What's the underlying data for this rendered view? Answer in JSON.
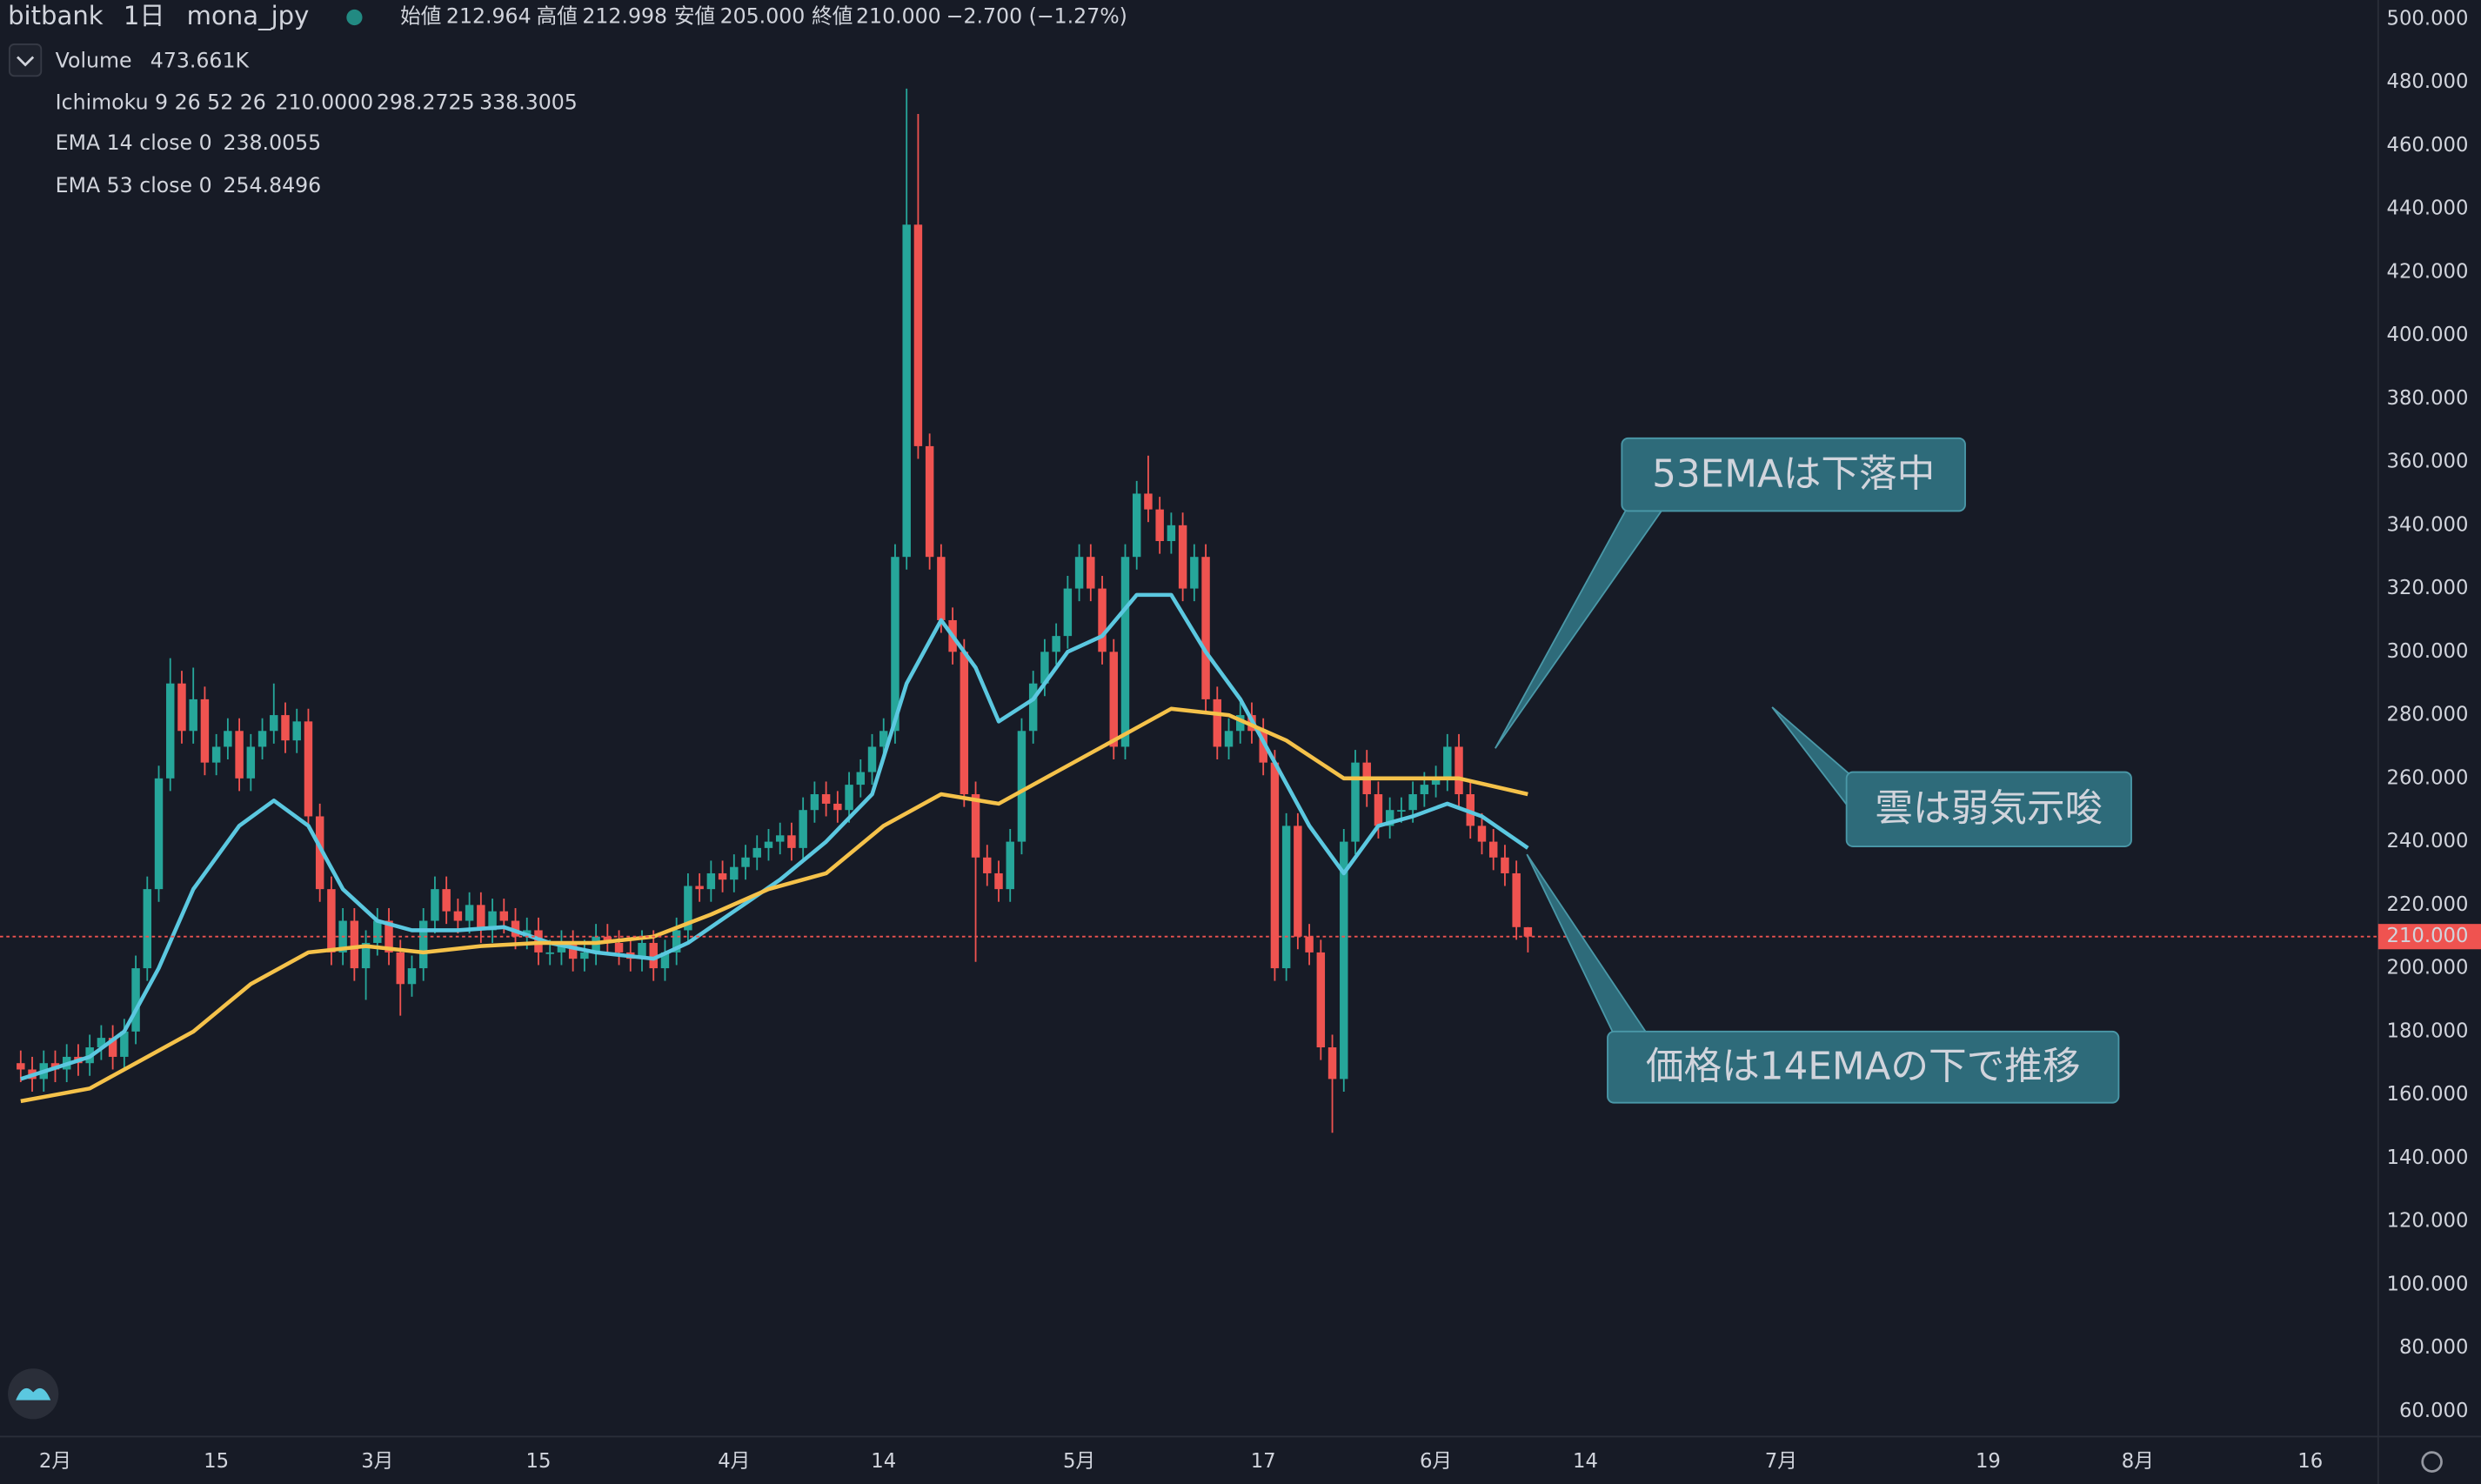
{
  "chart_data": {
    "type": "candlestick",
    "header": {
      "exchange": "bitbank",
      "interval": "1日",
      "symbol": "mona_jpy",
      "open_label": "始値",
      "open": "212.964",
      "high_label": "高値",
      "high": "212.998",
      "low_label": "安値",
      "low": "205.000",
      "close_label": "終値",
      "close": "210.000",
      "change": "−2.700 (−1.27%)"
    },
    "indicators": [
      {
        "name": "Volume",
        "values": [
          "473.661K"
        ],
        "colors": [
          "#ef5350"
        ]
      },
      {
        "name": "Ichimoku 9 26 52 26",
        "values": [
          "210.0000",
          "298.2725",
          "338.3005"
        ],
        "colors": [
          "#4caf50",
          "#4caf50",
          "#ef5350"
        ]
      }
    ],
    "colors": {
      "up": "#26a69a",
      "down": "#ef5350"
    },
    "open": [
      170,
      168,
      165,
      170,
      168,
      172,
      170,
      175,
      178,
      172,
      180,
      200,
      225,
      260,
      290,
      275,
      285,
      265,
      270,
      275,
      260,
      270,
      275,
      280,
      272,
      278,
      248,
      225,
      205,
      215,
      200,
      208,
      215,
      205,
      195,
      200,
      215,
      225,
      218,
      215,
      220,
      212,
      218,
      215,
      210,
      212,
      205,
      205,
      208,
      203,
      205,
      210,
      208,
      205,
      203,
      208,
      200,
      205,
      212,
      226,
      225,
      230,
      228,
      232,
      235,
      238,
      240,
      242,
      238,
      250,
      255,
      252,
      250,
      258,
      262,
      270,
      275,
      330,
      435,
      365,
      330,
      310,
      300,
      255,
      235,
      230,
      225,
      240,
      275,
      290,
      300,
      305,
      320,
      330,
      320,
      300,
      270,
      330,
      350,
      345,
      335,
      340,
      320,
      330,
      285,
      270,
      275,
      280,
      275,
      265,
      200,
      245,
      210,
      205,
      175,
      165,
      240,
      265,
      255,
      245,
      250,
      250,
      255,
      258,
      260,
      270,
      255,
      245,
      240,
      235,
      230,
      212.964
    ],
    "high": [
      174,
      172,
      174,
      174,
      176,
      176,
      179,
      182,
      182,
      184,
      204,
      229,
      264,
      298,
      294,
      295,
      289,
      274,
      279,
      279,
      274,
      279,
      290,
      284,
      282,
      282,
      252,
      229,
      219,
      219,
      212,
      219,
      219,
      209,
      204,
      219,
      229,
      229,
      222,
      224,
      224,
      222,
      222,
      219,
      216,
      216,
      209,
      212,
      212,
      209,
      214,
      214,
      212,
      209,
      212,
      212,
      209,
      216,
      230,
      230,
      234,
      234,
      236,
      239,
      242,
      244,
      246,
      246,
      254,
      259,
      259,
      256,
      262,
      266,
      274,
      279,
      334,
      478,
      470,
      369,
      334,
      314,
      304,
      259,
      239,
      234,
      244,
      279,
      294,
      304,
      309,
      324,
      334,
      334,
      324,
      304,
      334,
      354,
      362,
      349,
      344,
      344,
      334,
      334,
      289,
      279,
      284,
      284,
      279,
      269,
      249,
      249,
      214,
      209,
      179,
      244,
      269,
      269,
      259,
      254,
      254,
      259,
      262,
      264,
      274,
      274,
      259,
      249,
      244,
      239,
      234,
      212.998
    ],
    "low": [
      164,
      161,
      161,
      164,
      164,
      166,
      166,
      171,
      168,
      168,
      176,
      196,
      221,
      256,
      271,
      271,
      261,
      261,
      266,
      256,
      256,
      266,
      271,
      268,
      268,
      244,
      221,
      201,
      201,
      196,
      190,
      204,
      201,
      185,
      191,
      196,
      211,
      214,
      211,
      211,
      208,
      208,
      211,
      206,
      206,
      201,
      201,
      201,
      199,
      199,
      201,
      204,
      201,
      199,
      199,
      196,
      196,
      201,
      208,
      221,
      221,
      224,
      224,
      228,
      231,
      234,
      236,
      234,
      234,
      246,
      248,
      246,
      246,
      254,
      258,
      266,
      271,
      326,
      361,
      326,
      306,
      296,
      251,
      202,
      226,
      221,
      221,
      236,
      271,
      286,
      296,
      301,
      316,
      316,
      296,
      266,
      266,
      326,
      341,
      331,
      331,
      316,
      316,
      281,
      266,
      266,
      271,
      271,
      261,
      196,
      196,
      206,
      201,
      171,
      148,
      161,
      236,
      251,
      241,
      241,
      246,
      246,
      251,
      254,
      256,
      251,
      241,
      236,
      231,
      226,
      209,
      205
    ],
    "close": [
      168,
      165,
      170,
      168,
      172,
      170,
      175,
      178,
      172,
      180,
      200,
      225,
      260,
      290,
      275,
      285,
      265,
      270,
      275,
      260,
      270,
      275,
      280,
      272,
      278,
      248,
      225,
      205,
      215,
      200,
      208,
      215,
      205,
      195,
      200,
      215,
      225,
      218,
      215,
      220,
      212,
      218,
      215,
      210,
      212,
      205,
      205,
      208,
      203,
      205,
      210,
      208,
      205,
      203,
      208,
      200,
      205,
      212,
      226,
      225,
      230,
      228,
      232,
      235,
      238,
      240,
      242,
      238,
      250,
      255,
      252,
      250,
      258,
      262,
      270,
      275,
      330,
      435,
      365,
      330,
      310,
      300,
      255,
      235,
      230,
      225,
      240,
      275,
      290,
      300,
      305,
      320,
      330,
      320,
      300,
      270,
      330,
      350,
      345,
      335,
      340,
      320,
      330,
      285,
      270,
      275,
      280,
      275,
      265,
      200,
      245,
      210,
      205,
      175,
      165,
      240,
      265,
      255,
      245,
      250,
      250,
      255,
      258,
      260,
      270,
      255,
      245,
      240,
      235,
      230,
      213,
      210
    ],
    "lines": [
      {
        "name": "EMA 14 close 0",
        "legend_value": "238.0055",
        "color": "#5bc8e0",
        "x": [
          0,
          6,
          9,
          12,
          15,
          19,
          22,
          25,
          28,
          31,
          34,
          38,
          42,
          46,
          50,
          55,
          58,
          62,
          66,
          70,
          74,
          77,
          80,
          83,
          85,
          88,
          91,
          94,
          97,
          100,
          103,
          106,
          109,
          112,
          115,
          118,
          121,
          124,
          127,
          131
        ],
        "values": [
          165,
          172,
          180,
          200,
          225,
          245,
          253,
          245,
          225,
          215,
          212,
          212,
          213,
          208,
          205,
          203,
          208,
          218,
          228,
          240,
          255,
          290,
          310,
          295,
          278,
          285,
          300,
          305,
          318,
          318,
          300,
          285,
          265,
          245,
          230,
          245,
          248,
          252,
          248,
          238
        ]
      },
      {
        "name": "EMA 53 close 0",
        "legend_value": "254.8496",
        "color": "#f5c24a",
        "x": [
          0,
          6,
          10,
          15,
          20,
          25,
          30,
          35,
          40,
          45,
          50,
          55,
          60,
          65,
          70,
          75,
          80,
          85,
          90,
          95,
          100,
          105,
          110,
          115,
          120,
          125,
          131
        ],
        "values": [
          158,
          162,
          170,
          180,
          195,
          205,
          207,
          205,
          207,
          208,
          208,
          210,
          217,
          225,
          230,
          245,
          255,
          252,
          262,
          272,
          282,
          280,
          272,
          260,
          260,
          260,
          255
        ]
      }
    ],
    "price_line": {
      "value": 210,
      "label": "210.000",
      "color": "#ef5350"
    },
    "xlim": [
      -1.8,
      204.9
    ],
    "ylim": [
      52,
      506
    ],
    "xticks": [
      {
        "value": 3,
        "label": "2月"
      },
      {
        "value": 17,
        "label": "15"
      },
      {
        "value": 31,
        "label": "3月"
      },
      {
        "value": 45,
        "label": "15"
      },
      {
        "value": 62,
        "label": "4月"
      },
      {
        "value": 75,
        "label": "14"
      },
      {
        "value": 92,
        "label": "5月"
      },
      {
        "value": 108,
        "label": "17"
      },
      {
        "value": 123,
        "label": "6月"
      },
      {
        "value": 136,
        "label": "14"
      },
      {
        "value": 153,
        "label": "7月"
      },
      {
        "value": 171,
        "label": "19"
      },
      {
        "value": 184,
        "label": "8月"
      },
      {
        "value": 199,
        "label": "16"
      }
    ],
    "yticks": [
      {
        "value": 500,
        "label": "500.000"
      },
      {
        "value": 480,
        "label": "480.000"
      },
      {
        "value": 460,
        "label": "460.000"
      },
      {
        "value": 440,
        "label": "440.000"
      },
      {
        "value": 420,
        "label": "420.000"
      },
      {
        "value": 400,
        "label": "400.000"
      },
      {
        "value": 380,
        "label": "380.000"
      },
      {
        "value": 360,
        "label": "360.000"
      },
      {
        "value": 340,
        "label": "340.000"
      },
      {
        "value": 320,
        "label": "320.000"
      },
      {
        "value": 300,
        "label": "300.000"
      },
      {
        "value": 280,
        "label": "280.000"
      },
      {
        "value": 260,
        "label": "260.000"
      },
      {
        "value": 240,
        "label": "240.000"
      },
      {
        "value": 220,
        "label": "220.000"
      },
      {
        "value": 200,
        "label": "200.000"
      },
      {
        "value": 180,
        "label": "180.000"
      },
      {
        "value": 160,
        "label": "160.000"
      },
      {
        "value": 140,
        "label": "140.000"
      },
      {
        "value": 120,
        "label": "120.000"
      },
      {
        "value": 100,
        "label": "100.000"
      },
      {
        "value": 80,
        "label": "80.000"
      },
      {
        "value": 60,
        "label": "60.000"
      }
    ],
    "annotations": [
      {
        "text": "53EMAは下落中"
      },
      {
        "text": "雲は弱気示唆"
      },
      {
        "text": "価格は14EMAの下で推移"
      }
    ]
  }
}
